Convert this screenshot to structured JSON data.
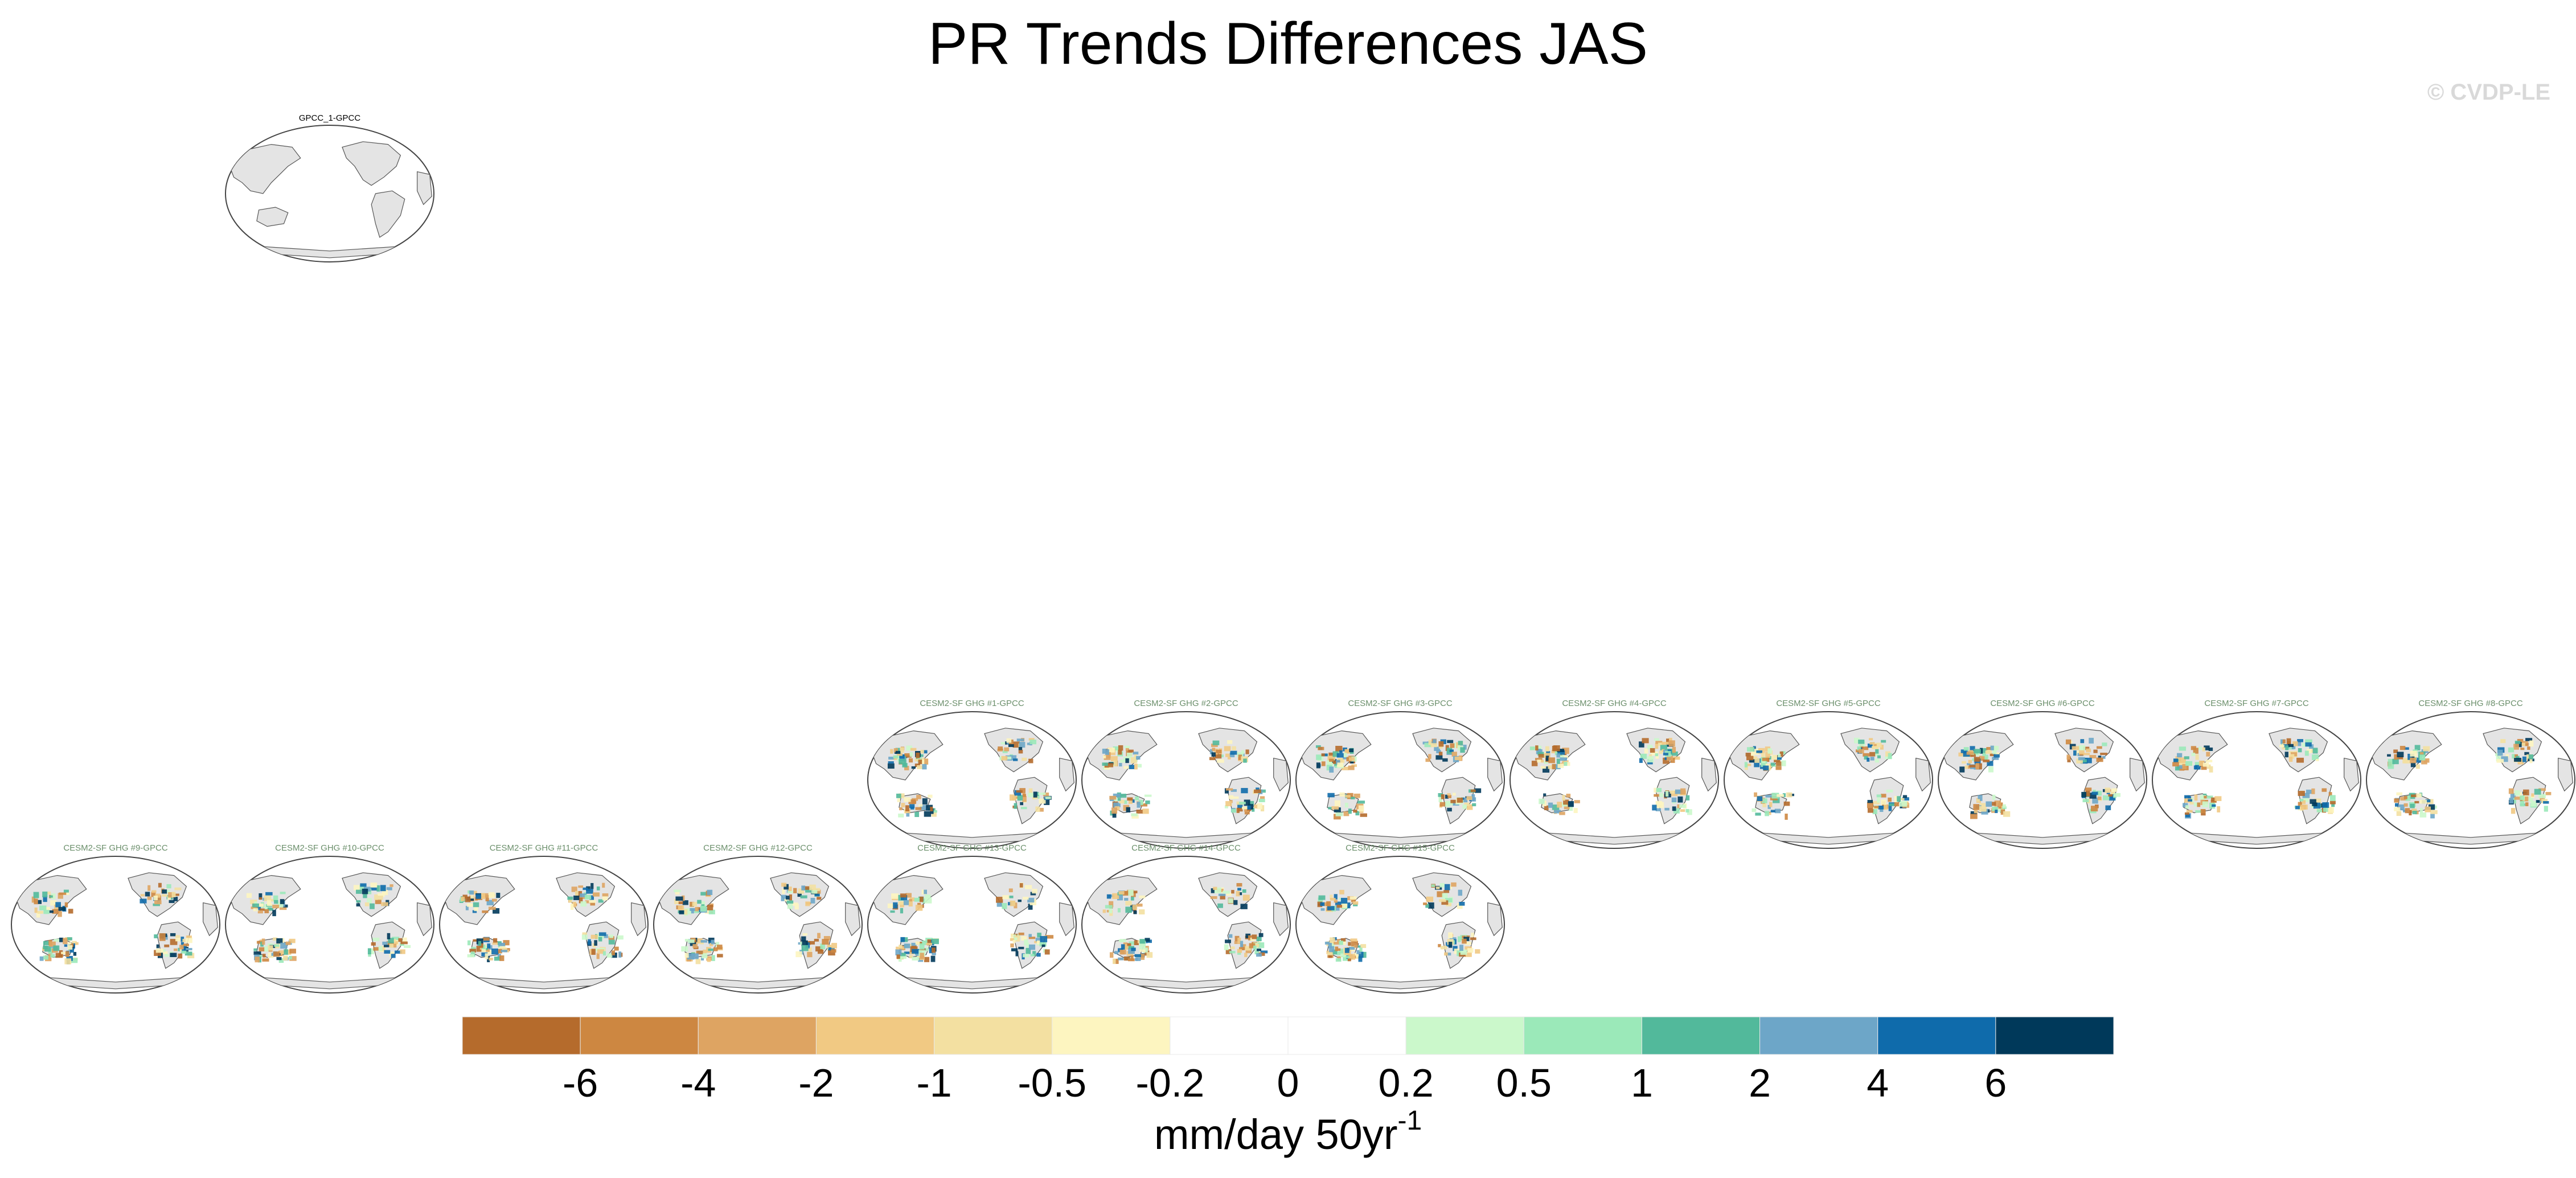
{
  "title": "PR Trends Differences JAS",
  "watermark": "© CVDP-LE",
  "chart_data": {
    "type": "map-panel-grid",
    "title": "PR Trends Differences JAS",
    "season": "JAS",
    "variable": "PR",
    "reference_dataset": "GPCC",
    "panels": [
      {
        "title": "GPCC_1-GPCC",
        "row": 0,
        "col": 1
      },
      {
        "title": "CESM2-SF GHG #1-GPCC",
        "row": 1,
        "col": 4
      },
      {
        "title": "CESM2-SF GHG #2-GPCC",
        "row": 1,
        "col": 5
      },
      {
        "title": "CESM2-SF GHG #3-GPCC",
        "row": 1,
        "col": 6
      },
      {
        "title": "CESM2-SF GHG #4-GPCC",
        "row": 1,
        "col": 7
      },
      {
        "title": "CESM2-SF GHG #5-GPCC",
        "row": 1,
        "col": 8
      },
      {
        "title": "CESM2-SF GHG #6-GPCC",
        "row": 1,
        "col": 9
      },
      {
        "title": "CESM2-SF GHG #7-GPCC",
        "row": 1,
        "col": 10
      },
      {
        "title": "CESM2-SF GHG #8-GPCC",
        "row": 1,
        "col": 11
      },
      {
        "title": "CESM2-SF GHG #9-GPCC",
        "row": 2,
        "col": 0
      },
      {
        "title": "CESM2-SF GHG #10-GPCC",
        "row": 2,
        "col": 1
      },
      {
        "title": "CESM2-SF GHG #11-GPCC",
        "row": 2,
        "col": 2
      },
      {
        "title": "CESM2-SF GHG #12-GPCC",
        "row": 2,
        "col": 3
      },
      {
        "title": "CESM2-SF GHG #13-GPCC",
        "row": 2,
        "col": 4
      },
      {
        "title": "CESM2-SF GHG #14-GPCC",
        "row": 2,
        "col": 5
      },
      {
        "title": "CESM2-SF GHG #15-GPCC",
        "row": 2,
        "col": 6
      }
    ],
    "colorbar": {
      "levels": [
        "-6",
        "-4",
        "-2",
        "-1",
        "-0.5",
        "-0.2",
        "0",
        "0.2",
        "0.5",
        "1",
        "2",
        "4",
        "6"
      ],
      "colors": [
        "#b56b2c",
        "#cd8741",
        "#dea462",
        "#f1c983",
        "#f3e0a1",
        "#fdf5c0",
        "#ffffff",
        "#ffffff",
        "#cbf8cb",
        "#9be9b9",
        "#52b99b",
        "#6da6c8",
        "#0f6bab",
        "#00395a"
      ],
      "unit_main": "mm/day 50yr",
      "unit_superscript": "-1"
    },
    "map_colors": {
      "land": "#e4e4e4",
      "coastline": "#555555",
      "panel_title_color": "#6b8f6b",
      "first_panel_title_color": "#000000"
    }
  }
}
